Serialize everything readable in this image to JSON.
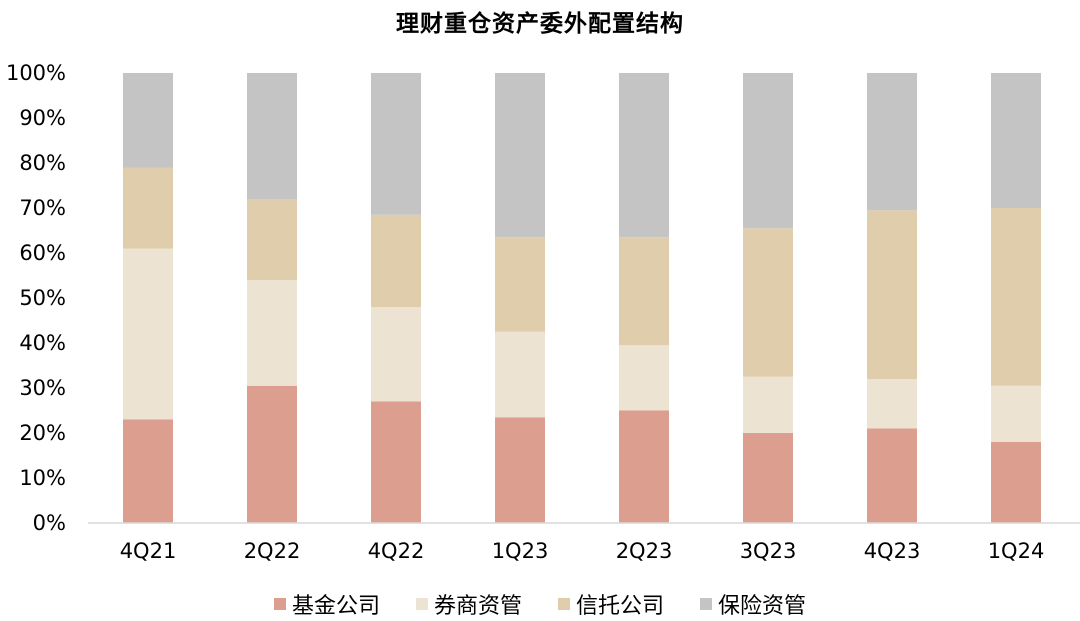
{
  "chart_data": {
    "type": "bar",
    "stacked": true,
    "title": "理财重仓资产委外配置结构",
    "categories": [
      "4Q21",
      "2Q22",
      "4Q22",
      "1Q23",
      "2Q23",
      "3Q23",
      "4Q23",
      "1Q24"
    ],
    "y_ticks": [
      "0%",
      "10%",
      "20%",
      "30%",
      "40%",
      "50%",
      "60%",
      "70%",
      "80%",
      "90%",
      "100%"
    ],
    "ylim": [
      0,
      100
    ],
    "legend_position": "bottom",
    "series": [
      {
        "name": "基金公司",
        "color": "#dc9e8e",
        "values": [
          23,
          30.5,
          27,
          23.5,
          25,
          20,
          21,
          18
        ]
      },
      {
        "name": "券商资管",
        "color": "#ede3d2",
        "values": [
          38,
          23.5,
          21,
          19,
          14.5,
          12.5,
          11,
          12.5
        ]
      },
      {
        "name": "信托公司",
        "color": "#e0cdac",
        "values": [
          18,
          18,
          20.5,
          21,
          24,
          33,
          37.5,
          39.5
        ]
      },
      {
        "name": "保险资管",
        "color": "#c4c4c4",
        "values": [
          21,
          28,
          31.5,
          36.5,
          36.5,
          34.5,
          30.5,
          30
        ]
      }
    ]
  }
}
